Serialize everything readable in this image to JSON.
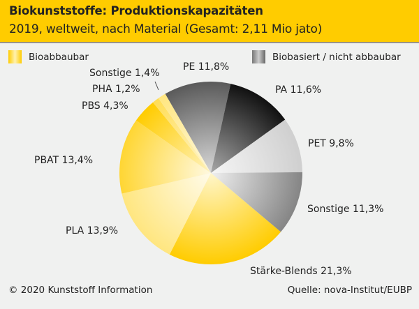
{
  "header": {
    "title": "Biokunststoffe: Produktionskapazitäten",
    "subtitle": "2019, weltweit, nach Material (Gesamt: 2,11 Mio jato)"
  },
  "legend": {
    "items": [
      {
        "label": "Bioabbaubar",
        "color": "#ffcc00"
      },
      {
        "label": "Biobasiert / nicht abbaubar",
        "color": "#777777"
      }
    ]
  },
  "chart_data": {
    "type": "pie",
    "title": "Biokunststoffe: Produktionskapazitäten",
    "subtitle": "2019, weltweit, nach Material (Gesamt: 2,11 Mio jato)",
    "unit": "%",
    "slices": [
      {
        "name": "PE",
        "value": 11.8,
        "group": "Biobasiert / nicht abbaubar",
        "label": "PE 11,8%",
        "edge": "#5a5a5a",
        "center": "#d8d8d8"
      },
      {
        "name": "PA",
        "value": 11.6,
        "group": "Biobasiert / nicht abbaubar",
        "label": "PA 11,6%",
        "edge": "#111111",
        "center": "#a8a8a8"
      },
      {
        "name": "PET",
        "value": 9.8,
        "group": "Biobasiert / nicht abbaubar",
        "label": "PET 9,8%",
        "edge": "#cfcfcf",
        "center": "#f6f6f6"
      },
      {
        "name": "Sonstige",
        "value": 11.3,
        "group": "Biobasiert / nicht abbaubar",
        "label": "Sonstige 11,3%",
        "edge": "#858585",
        "center": "#f0f0f0"
      },
      {
        "name": "Stärke-Blends",
        "value": 21.3,
        "group": "Bioabbaubar",
        "label": "Stärke-Blends 21,3%",
        "edge": "#ffcc00",
        "center": "#fff6cc"
      },
      {
        "name": "PLA",
        "value": 13.9,
        "group": "Bioabbaubar",
        "label": "PLA 13,9%",
        "edge": "#ffe680",
        "center": "#fffbea"
      },
      {
        "name": "PBAT",
        "value": 13.4,
        "group": "Bioabbaubar",
        "label": "PBAT 13,4%",
        "edge": "#ffd633",
        "center": "#fff9e0"
      },
      {
        "name": "PBS",
        "value": 4.3,
        "group": "Bioabbaubar",
        "label": "PBS 4,3%",
        "edge": "#ffcc00",
        "center": "#fff3c0"
      },
      {
        "name": "PHA",
        "value": 1.2,
        "group": "Bioabbaubar",
        "label": "PHA 1,2%",
        "edge": "#ffdd55",
        "center": "#fff6d0"
      },
      {
        "name": "Sonstige",
        "value": 1.4,
        "group": "Bioabbaubar",
        "label": "Sonstige 1,4%",
        "edge": "#ffe680",
        "center": "#fff8dd"
      }
    ],
    "start_angle_deg": -30,
    "direction": "clockwise"
  },
  "footer": {
    "copyright": "© 2020 Kunststoff Information",
    "source": "Quelle: nova-Institut/EUBP"
  }
}
